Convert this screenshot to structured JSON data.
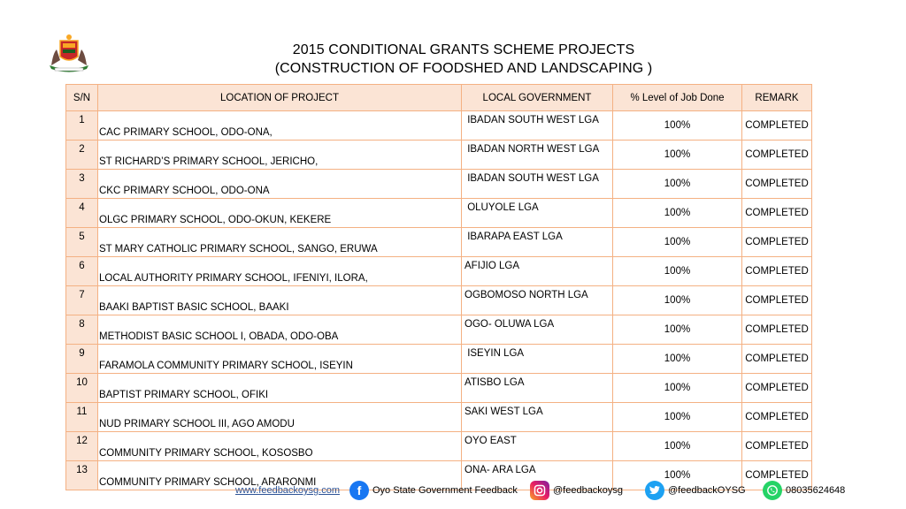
{
  "title": {
    "line1": "2015 CONDITIONAL GRANTS SCHEME PROJECTS",
    "line2": "(CONSTRUCTION OF FOODSHED AND LANDSCAPING )"
  },
  "table": {
    "headers": {
      "sn": "S/N",
      "location": "LOCATION OF PROJECT",
      "lga": "LOCAL GOVERNMENT",
      "level": "% Level  of Job Done",
      "remark": "REMARK"
    },
    "rows": [
      {
        "sn": "1",
        "location": "CAC PRIMARY SCHOOL, ODO-ONA,",
        "lga": " IBADAN SOUTH WEST LGA",
        "level": "100%",
        "remark": "COMPLETED"
      },
      {
        "sn": "2",
        "location": "ST RICHARD’S PRIMARY SCHOOL, JERICHO,",
        "lga": " IBADAN NORTH WEST LGA",
        "level": "100%",
        "remark": "COMPLETED"
      },
      {
        "sn": "3",
        "location": "CKC PRIMARY SCHOOL, ODO-ONA",
        "lga": " IBADAN SOUTH WEST LGA",
        "level": "100%",
        "remark": "COMPLETED"
      },
      {
        "sn": "4",
        "location": "OLGC PRIMARY SCHOOL, ODO-OKUN, KEKERE",
        "lga": " OLUYOLE LGA",
        "level": "100%",
        "remark": "COMPLETED"
      },
      {
        "sn": "5",
        "location": "ST MARY CATHOLIC PRIMARY SCHOOL, SANGO, ERUWA",
        "lga": " IBARAPA EAST LGA",
        "level": "100%",
        "remark": "COMPLETED"
      },
      {
        "sn": "6",
        "location": "LOCAL AUTHORITY PRIMARY SCHOOL, IFENIYI, ILORA,",
        "lga": "AFIJIO LGA",
        "level": "100%",
        "remark": "COMPLETED"
      },
      {
        "sn": "7",
        "location": "BAAKI BAPTIST BASIC SCHOOL, BAAKI",
        "lga": "OGBOMOSO NORTH LGA",
        "level": "100%",
        "remark": "COMPLETED"
      },
      {
        "sn": "8",
        "location": "METHODIST BASIC SCHOOL I, OBADA, ODO-OBA",
        "lga": "OGO- OLUWA LGA",
        "level": "100%",
        "remark": "COMPLETED"
      },
      {
        "sn": "9",
        "location": "FARAMOLA COMMUNITY PRIMARY SCHOOL, ISEYIN",
        "lga": " ISEYIN LGA",
        "level": "100%",
        "remark": "COMPLETED"
      },
      {
        "sn": "10",
        "location": "BAPTIST PRIMARY SCHOOL, OFIKI",
        "lga": "ATISBO LGA",
        "level": "100%",
        "remark": "COMPLETED"
      },
      {
        "sn": "11",
        "location": "NUD PRIMARY SCHOOL III, AGO AMODU",
        "lga": "SAKI WEST LGA",
        "level": "100%",
        "remark": "COMPLETED"
      },
      {
        "sn": "12",
        "location": "COMMUNITY PRIMARY SCHOOL, KOSOSBO",
        "lga": "OYO EAST",
        "level": "100%",
        "remark": "COMPLETED"
      },
      {
        "sn": "13",
        "location": "COMMUNITY PRIMARY SCHOOL, ARARONMI",
        "lga": "ONA- ARA LGA",
        "level": "100%",
        "remark": "COMPLETED"
      }
    ]
  },
  "footer": {
    "website": "www.feedbackoysg.com",
    "facebook": "Oyo State Government Feedback",
    "instagram": "@feedbackoysg",
    "twitter": "@feedbackOYSG",
    "whatsapp": "08035624648"
  },
  "colors": {
    "border": "#f4b183",
    "header_fill": "#fbe4d5",
    "link": "#2f5597",
    "facebook": "#1877f2",
    "twitter": "#1da1f2",
    "whatsapp": "#25d366"
  },
  "icons": [
    "oyo-state-crest-icon",
    "facebook-icon",
    "instagram-icon",
    "twitter-icon",
    "whatsapp-icon"
  ]
}
